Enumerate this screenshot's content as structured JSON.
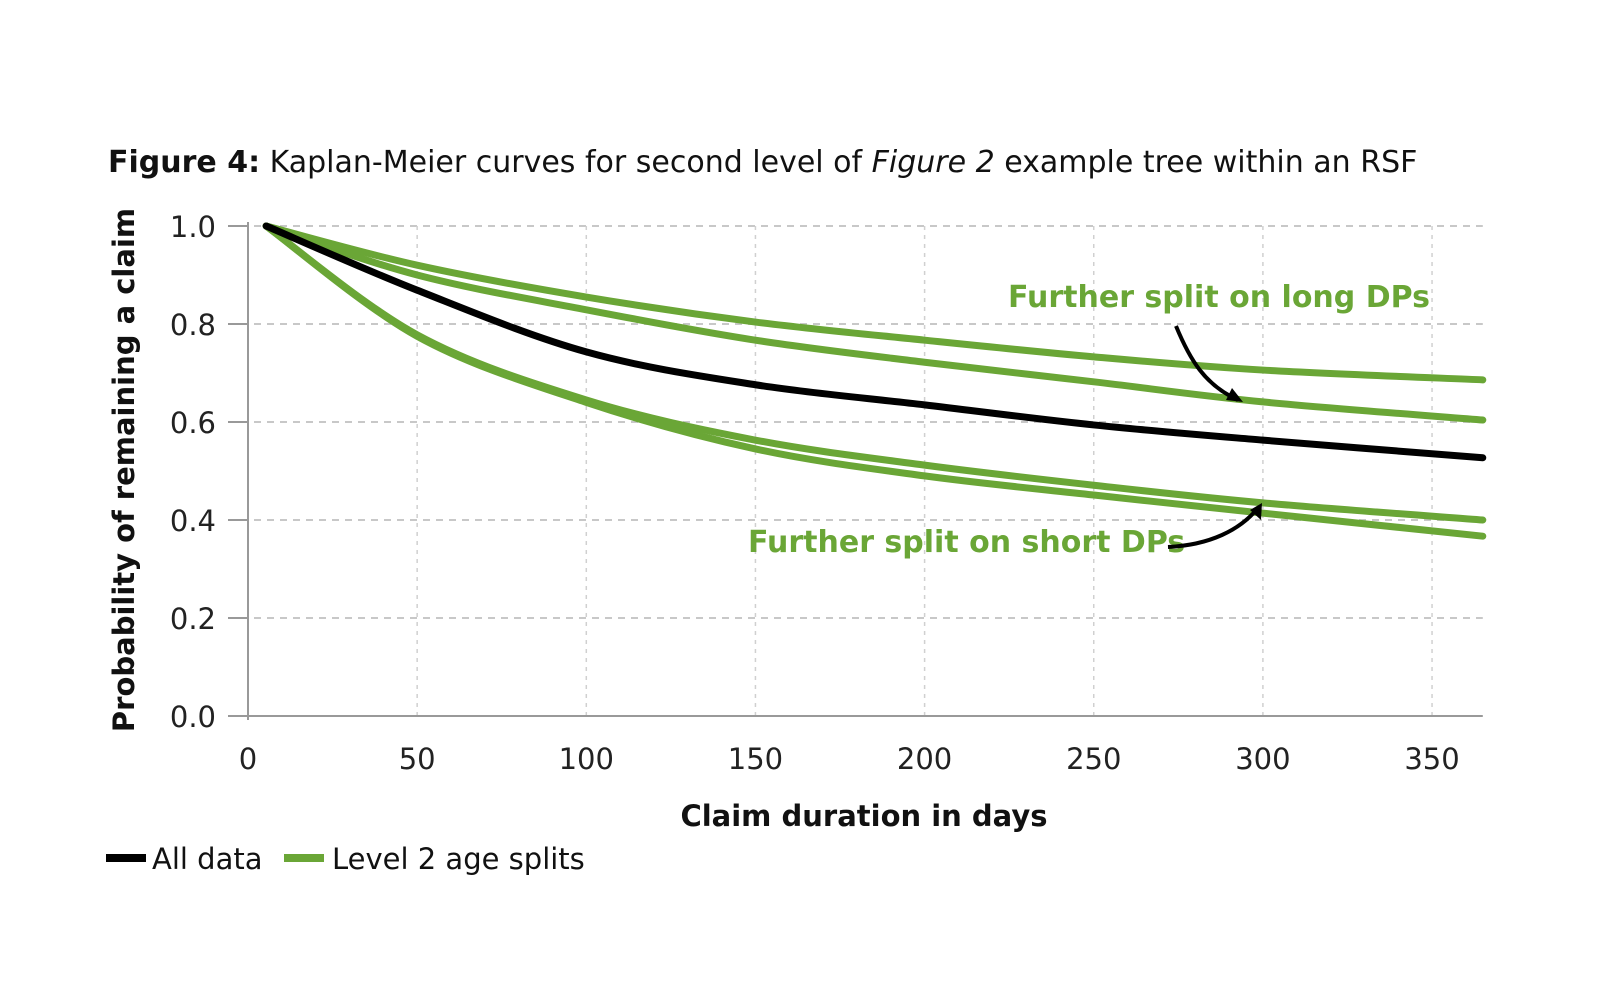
{
  "chart_data": {
    "type": "line",
    "title_bold": "Figure 4:",
    "title_pre": " Kaplan-Meier curves for second level of ",
    "title_italic": "Figure 2",
    "title_post": " example tree within an RSF",
    "xlabel": "Claim duration in days",
    "ylabel": "Probability of remaining a claim",
    "xlim": [
      0,
      365
    ],
    "ylim": [
      0,
      1
    ],
    "xticks": [
      0,
      50,
      100,
      150,
      200,
      250,
      300,
      350
    ],
    "yticks": [
      "0.0",
      "0.2",
      "0.4",
      "0.6",
      "0.8",
      "1.0"
    ],
    "grid": true,
    "x": [
      3,
      50,
      100,
      150,
      200,
      250,
      300,
      365
    ],
    "series": [
      {
        "name": "All data",
        "color": "#000000",
        "values": [
          1.0,
          0.869,
          0.743,
          0.676,
          0.635,
          0.594,
          0.563,
          0.527
        ]
      },
      {
        "name": "Level 2 age splits",
        "color": "#6aa636",
        "values": [
          1.0,
          0.92,
          0.855,
          0.804,
          0.767,
          0.733,
          0.706,
          0.686
        ]
      },
      {
        "name": "Level 2 age splits",
        "color": "#6aa636",
        "values": [
          1.0,
          0.9,
          0.829,
          0.767,
          0.722,
          0.682,
          0.641,
          0.604
        ]
      },
      {
        "name": "Level 2 age splits",
        "color": "#6aa636",
        "values": [
          1.0,
          0.778,
          0.645,
          0.563,
          0.512,
          0.471,
          0.435,
          0.4
        ]
      },
      {
        "name": "Level 2 age splits",
        "color": "#6aa636",
        "values": [
          1.0,
          0.775,
          0.64,
          0.545,
          0.49,
          0.451,
          0.414,
          0.367
        ]
      }
    ],
    "annotations": [
      "Further split on long DPs",
      "Further split on short DPs"
    ],
    "legend": {
      "placement": "bottom-left",
      "items": [
        {
          "label": "All data",
          "color": "#000000"
        },
        {
          "label": "Level 2 age splits",
          "color": "#6aa636"
        }
      ]
    }
  }
}
